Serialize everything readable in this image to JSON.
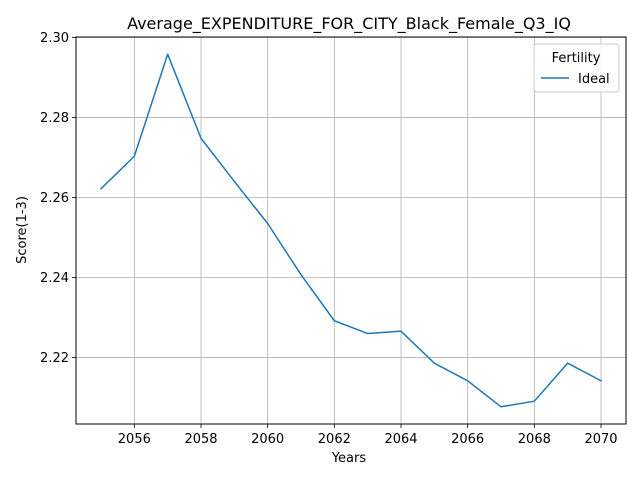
{
  "chart_data": {
    "type": "line",
    "title": "Average_EXPENDITURE_FOR_CITY_Black_Female_Q3_IQ",
    "xlabel": "Years",
    "ylabel": "Score(1-3)",
    "x": [
      2055,
      2056,
      2057,
      2058,
      2059,
      2060,
      2061,
      2062,
      2063,
      2064,
      2065,
      2066,
      2067,
      2068,
      2069,
      2070
    ],
    "series": [
      {
        "name": "Ideal",
        "color": "#1f77b4",
        "values": [
          2.2622,
          2.2703,
          2.2958,
          2.2748,
          2.264,
          2.2535,
          2.2407,
          2.2292,
          2.226,
          2.2266,
          2.2186,
          2.2142,
          2.2077,
          2.2091,
          2.2186,
          2.2142
        ]
      }
    ],
    "xticks": [
      "2056",
      "2058",
      "2060",
      "2062",
      "2064",
      "2066",
      "2068",
      "2070"
    ],
    "yticks": [
      "2.22",
      "2.24",
      "2.26",
      "2.28",
      "2.30"
    ],
    "xlim": [
      2054.25,
      2070.75
    ],
    "ylim": [
      2.2034,
      2.3001
    ],
    "grid": true,
    "legend": {
      "title": "Fertility",
      "placement": "top-right"
    }
  }
}
